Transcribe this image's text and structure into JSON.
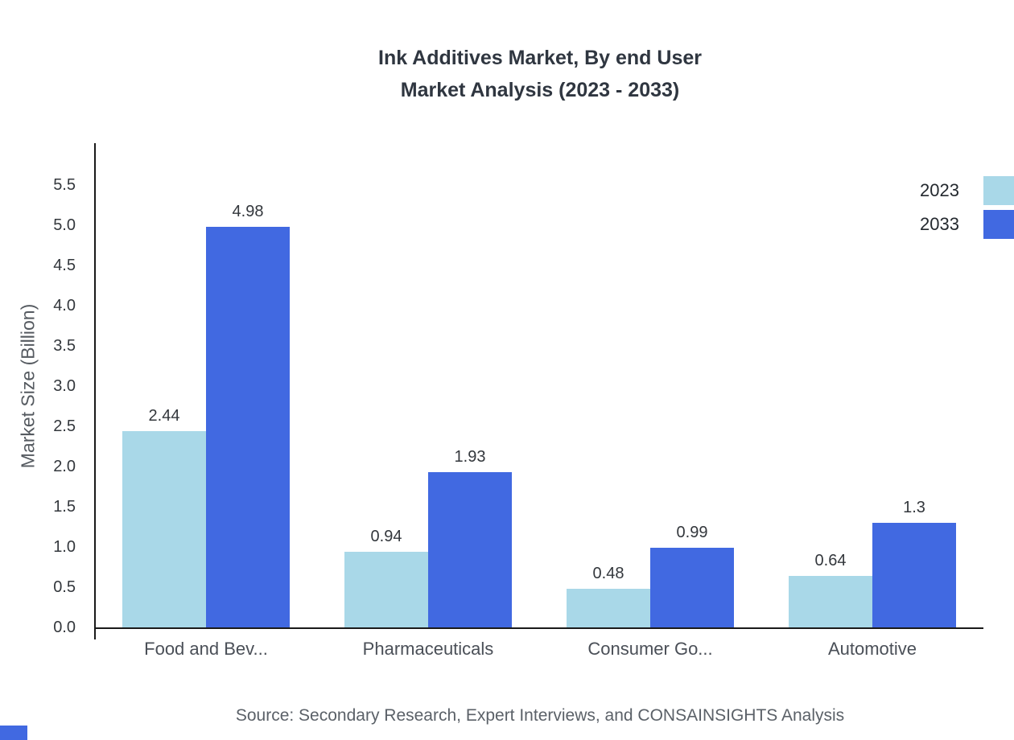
{
  "title": {
    "line1": "Ink Additives Market, By end User",
    "line2": "Market Analysis (2023 - 2033)"
  },
  "source": "Source: Secondary Research, Expert Interviews, and CONSAINSIGHTS Analysis",
  "colors": {
    "series_2023": "#a9d8e8",
    "series_2033": "#4169e1",
    "axis": "#1a1a1a"
  },
  "chart_data": {
    "type": "bar",
    "title": "Ink Additives Market, By end User Market Analysis (2023 - 2033)",
    "categories": [
      "Food and Bev...",
      "Pharmaceuticals",
      "Consumer Go...",
      "Automotive"
    ],
    "series": [
      {
        "name": "2023",
        "color": "#a9d8e8",
        "values": [
          2.44,
          0.94,
          0.48,
          0.64
        ]
      },
      {
        "name": "2033",
        "color": "#4169e1",
        "values": [
          4.98,
          1.93,
          0.99,
          1.3
        ]
      }
    ],
    "xlabel": "",
    "ylabel": "Market Size (Billion)",
    "ylim": [
      0,
      6
    ],
    "yticks": [
      0.0,
      0.5,
      1.0,
      1.5,
      2.0,
      2.5,
      3.0,
      3.5,
      4.0,
      4.5,
      5.0,
      5.5
    ],
    "grid": false,
    "legend_position": "top-right",
    "value_labels": true
  }
}
